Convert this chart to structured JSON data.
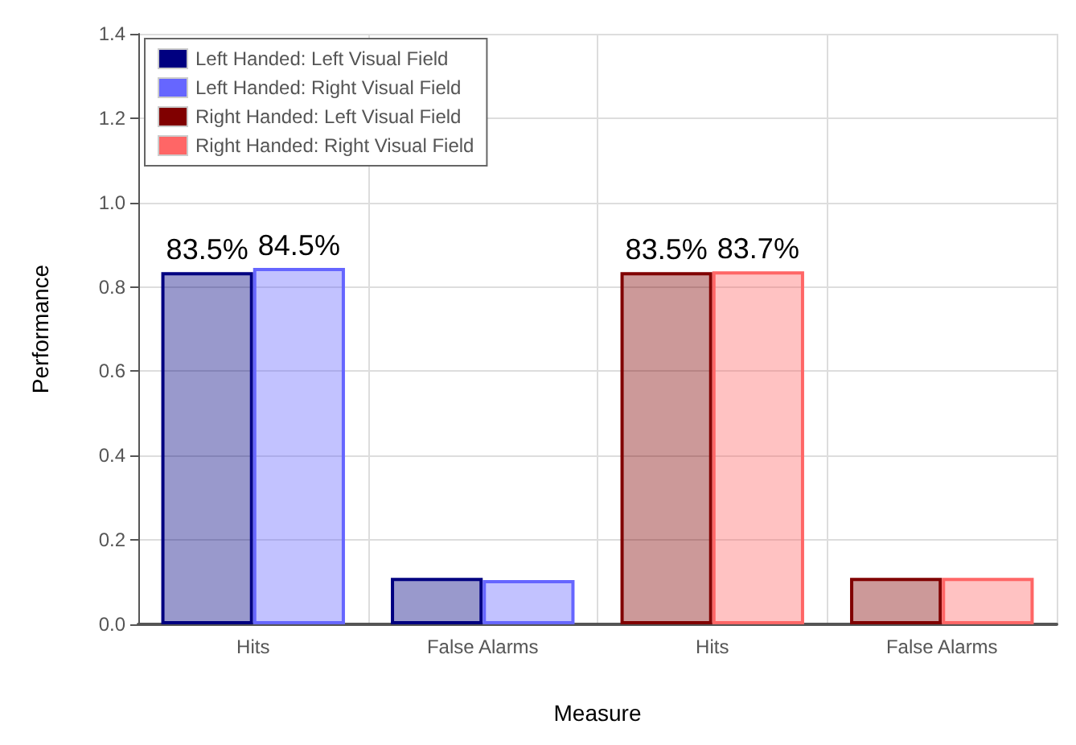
{
  "chart_data": {
    "type": "bar",
    "xlabel": "Measure",
    "ylabel": "Performance",
    "categories": [
      "Hits",
      "False Alarms",
      "Hits",
      "False Alarms"
    ],
    "series": [
      {
        "name": "Left Handed: Left Visual Field",
        "color": "#000080",
        "values": [
          0.835,
          0.11,
          null,
          null
        ],
        "value_labels": [
          "83.5%",
          null,
          null,
          null
        ]
      },
      {
        "name": "Left Handed: Right Visual Field",
        "color": "#6666ff",
        "values": [
          0.845,
          0.105,
          null,
          null
        ],
        "value_labels": [
          "84.5%",
          null,
          null,
          null
        ]
      },
      {
        "name": "Right Handed: Left Visual Field",
        "color": "#800000",
        "values": [
          null,
          null,
          0.835,
          0.11
        ],
        "value_labels": [
          null,
          null,
          "83.5%",
          null
        ]
      },
      {
        "name": "Right Handed: Right Visual Field",
        "color": "#ff6666",
        "values": [
          null,
          null,
          0.837,
          0.11
        ],
        "value_labels": [
          null,
          null,
          "83.7%",
          null
        ]
      }
    ],
    "ylim": [
      0,
      1.4
    ],
    "yticks": [
      {
        "value": 0,
        "label": "0.0"
      },
      0.2,
      0.4,
      0.6,
      0.8,
      {
        "value": 1,
        "label": "1.0"
      },
      1.2,
      1.4
    ],
    "grid": true,
    "legend": "top left"
  }
}
